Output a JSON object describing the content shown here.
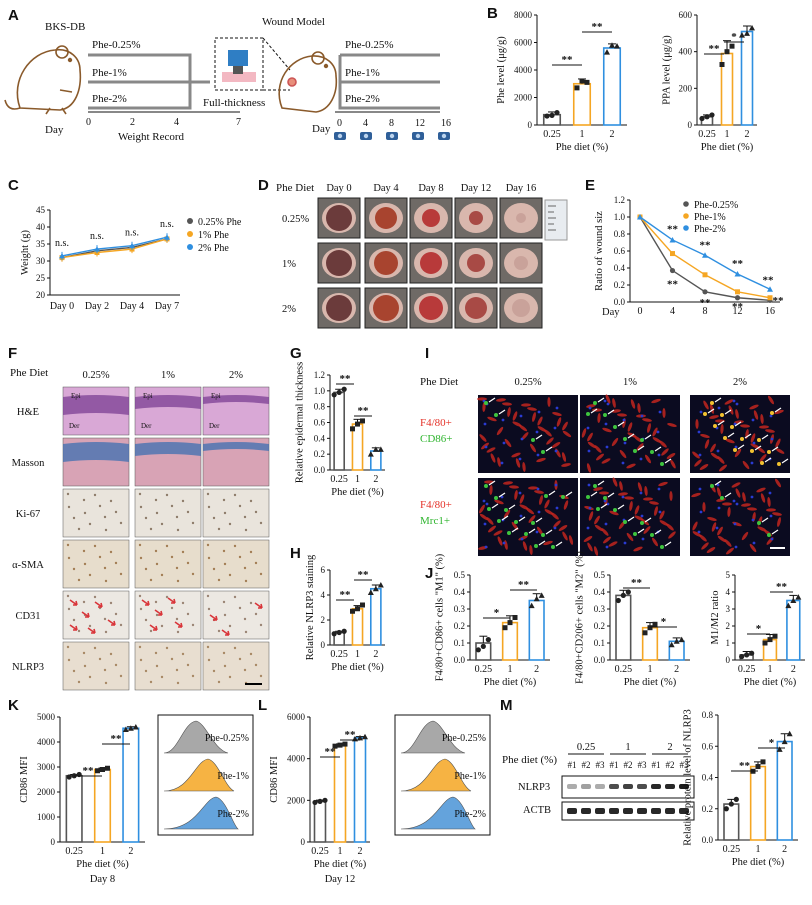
{
  "panel_letters": {
    "A": "A",
    "B": "B",
    "C": "C",
    "D": "D",
    "E": "E",
    "F": "F",
    "G": "G",
    "H": "H",
    "I": "I",
    "J": "J",
    "K": "K",
    "L": "L",
    "M": "M"
  },
  "colors": {
    "c025": "#555555",
    "c1": "#f5a623",
    "c2": "#2f8fe0",
    "red_stain": "#d9353a",
    "green_stain": "#3ec43e"
  },
  "panelA": {
    "mouse1_label": "BKS-DB",
    "groups": [
      "Phe-0.25%",
      "Phe-1%",
      "Phe-2%"
    ],
    "day_label": "Day",
    "weight_days": [
      "0",
      "2",
      "4",
      "7"
    ],
    "weight_record": "Weight Record",
    "full_thickness": "Full-thickness",
    "wound_model": "Wound Model",
    "wound_days": [
      "0",
      "4",
      "8",
      "12",
      "16"
    ]
  },
  "shared": {
    "phe_diet_axis": "Phe diet (%)",
    "diet_ticks": [
      "0.25",
      "1",
      "2"
    ],
    "nss": "n.s.",
    "sig2": "**",
    "sig1": "*"
  },
  "chart_data": [
    {
      "id": "B1",
      "type": "bar",
      "ylabel": "Phe level (μg/g)",
      "xlabel": "Phe diet (%)",
      "categories": [
        "0.25",
        "1",
        "2"
      ],
      "values": [
        750,
        3000,
        5600
      ],
      "errors": [
        200,
        350,
        300
      ],
      "ylim": [
        0,
        8000
      ],
      "yticks": [
        "0",
        "2000",
        "4000",
        "6000",
        "8000"
      ],
      "points": [
        [
          650,
          700,
          900
        ],
        [
          2700,
          3200,
          3100
        ],
        [
          5300,
          5800,
          5750
        ]
      ]
    },
    {
      "id": "B2",
      "type": "bar",
      "ylabel": "PPA level (μg/g)",
      "xlabel": "Phe diet (%)",
      "categories": [
        "0.25",
        "1",
        "2"
      ],
      "values": [
        45,
        390,
        510
      ],
      "errors": [
        10,
        70,
        30
      ],
      "ylim": [
        0,
        600
      ],
      "yticks": [
        "0",
        "200",
        "400",
        "600"
      ],
      "points": [
        [
          35,
          45,
          55
        ],
        [
          330,
          400,
          430
        ],
        [
          490,
          500,
          530
        ]
      ]
    },
    {
      "id": "C",
      "type": "line",
      "ylabel": "Weight (g)",
      "xlabel": "",
      "categories": [
        "Day 0",
        "Day 2",
        "Day 4",
        "Day 7"
      ],
      "ylim": [
        20,
        45
      ],
      "yticks": [
        "20",
        "25",
        "30",
        "35",
        "40",
        "45"
      ],
      "series": [
        {
          "name": "0.25% Phe",
          "values": [
            31,
            33,
            34,
            36.5
          ]
        },
        {
          "name": "1% Phe",
          "values": [
            31,
            32.5,
            33.5,
            36.5
          ]
        },
        {
          "name": "2% Phe",
          "values": [
            31.5,
            33.5,
            34.5,
            37
          ]
        }
      ],
      "annotations": [
        "n.s.",
        "n.s.",
        "n.s.",
        "n.s."
      ]
    },
    {
      "id": "E",
      "type": "line",
      "ylabel": "Ratio of wound siz",
      "xlabel": "Day",
      "x": [
        0,
        4,
        8,
        12,
        16
      ],
      "xticks": [
        "0",
        "4",
        "8",
        "12",
        "16"
      ],
      "ylim": [
        0,
        1.2
      ],
      "yticks": [
        "0.0",
        "0.2",
        "0.4",
        "0.6",
        "0.8",
        "1.0",
        "1.2"
      ],
      "series": [
        {
          "name": "Phe-0.25%",
          "values": [
            1.0,
            0.37,
            0.12,
            0.05,
            0.02
          ]
        },
        {
          "name": "Phe-1%",
          "values": [
            1.0,
            0.57,
            0.32,
            0.12,
            0.05
          ]
        },
        {
          "name": "Phe-2%",
          "values": [
            1.0,
            0.73,
            0.55,
            0.33,
            0.15
          ]
        }
      ]
    },
    {
      "id": "G",
      "type": "bar",
      "ylabel": "Relative epidermal thickness",
      "xlabel": "Phe diet (%)",
      "categories": [
        "0.25",
        "1",
        "2"
      ],
      "values": [
        0.98,
        0.58,
        0.24
      ],
      "errors": [
        0.04,
        0.06,
        0.04
      ],
      "ylim": [
        0,
        1.2
      ],
      "yticks": [
        "0.0",
        "0.2",
        "0.4",
        "0.6",
        "0.8",
        "1.0",
        "1.2"
      ],
      "points": [
        [
          0.95,
          0.98,
          1.02
        ],
        [
          0.52,
          0.58,
          0.62
        ],
        [
          0.2,
          0.26,
          0.26
        ]
      ]
    },
    {
      "id": "H",
      "type": "bar",
      "ylabel": "Relative NLRP3 staining",
      "xlabel": "Phe diet (%)",
      "categories": [
        "0.25",
        "1",
        "2"
      ],
      "values": [
        1.0,
        2.9,
        4.5
      ],
      "errors": [
        0.1,
        0.25,
        0.3
      ],
      "ylim": [
        0,
        6
      ],
      "yticks": [
        "0",
        "2",
        "4",
        "6"
      ],
      "points": [
        [
          0.9,
          1.0,
          1.1
        ],
        [
          2.7,
          2.9,
          3.2
        ],
        [
          4.2,
          4.5,
          4.8
        ]
      ]
    },
    {
      "id": "J1",
      "type": "bar",
      "ylabel": "F4/80+CD86+ cells \"M1\" (%)",
      "xlabel": "Phe diet (%)",
      "categories": [
        "0.25",
        "1",
        "2"
      ],
      "values": [
        0.1,
        0.22,
        0.35
      ],
      "errors": [
        0.04,
        0.04,
        0.04
      ],
      "ylim": [
        0,
        0.5
      ],
      "yticks": [
        "0.0",
        "0.1",
        "0.2",
        "0.3",
        "0.4",
        "0.5"
      ],
      "points": [
        [
          0.06,
          0.08,
          0.12
        ],
        [
          0.19,
          0.22,
          0.25
        ],
        [
          0.32,
          0.36,
          0.38
        ]
      ]
    },
    {
      "id": "J2",
      "type": "bar",
      "ylabel": "F4/80+CD206+ cells \"M2\" (%)",
      "xlabel": "Phe diet (%)",
      "categories": [
        "0.25",
        "1",
        "2"
      ],
      "values": [
        0.38,
        0.19,
        0.11
      ],
      "errors": [
        0.03,
        0.03,
        0.02
      ],
      "ylim": [
        0,
        0.5
      ],
      "yticks": [
        "0.0",
        "0.1",
        "0.2",
        "0.3",
        "0.4",
        "0.5"
      ],
      "points": [
        [
          0.35,
          0.38,
          0.4
        ],
        [
          0.16,
          0.19,
          0.21
        ],
        [
          0.09,
          0.11,
          0.12
        ]
      ]
    },
    {
      "id": "J3",
      "type": "bar",
      "ylabel": "M1/M2 ratio",
      "xlabel": "Phe diet (%)",
      "categories": [
        "0.25",
        "1",
        "2"
      ],
      "values": [
        0.3,
        1.2,
        3.5
      ],
      "errors": [
        0.2,
        0.3,
        0.3
      ],
      "ylim": [
        0,
        5
      ],
      "yticks": [
        "0",
        "1",
        "2",
        "3",
        "4",
        "5"
      ],
      "points": [
        [
          0.2,
          0.3,
          0.4
        ],
        [
          1.0,
          1.2,
          1.4
        ],
        [
          3.2,
          3.5,
          3.7
        ]
      ]
    },
    {
      "id": "K",
      "type": "bar",
      "ylabel": "CD86 MFI",
      "xlabel": "Phe diet (%)",
      "caption": "Day 8",
      "categories": [
        "0.25",
        "1",
        "2"
      ],
      "values": [
        2650,
        2900,
        4550
      ],
      "errors": [
        50,
        60,
        60
      ],
      "ylim": [
        0,
        5000
      ],
      "yticks": [
        "0",
        "1000",
        "2000",
        "3000",
        "4000",
        "5000"
      ],
      "points": [
        [
          2600,
          2650,
          2700
        ],
        [
          2850,
          2900,
          2950
        ],
        [
          4500,
          4550,
          4600
        ]
      ]
    },
    {
      "id": "L",
      "type": "bar",
      "ylabel": "CD86 MFI",
      "xlabel": "Phe diet (%)",
      "caption": "Day 12",
      "categories": [
        "0.25",
        "1",
        "2"
      ],
      "values": [
        1950,
        4650,
        5000
      ],
      "errors": [
        60,
        60,
        60
      ],
      "ylim": [
        0,
        6000
      ],
      "yticks": [
        "0",
        "2000",
        "4000",
        "6000"
      ],
      "points": [
        [
          1900,
          1950,
          2000
        ],
        [
          4600,
          4650,
          4700
        ],
        [
          4950,
          5000,
          5050
        ]
      ]
    },
    {
      "id": "M",
      "type": "bar",
      "ylabel": "Relative protein level of NLRP3",
      "xlabel": "Phe diet (%)",
      "categories": [
        "0.25",
        "1",
        "2"
      ],
      "values": [
        0.23,
        0.47,
        0.63
      ],
      "errors": [
        0.03,
        0.03,
        0.05
      ],
      "ylim": [
        0,
        0.8
      ],
      "yticks": [
        "0.0",
        "0.2",
        "0.4",
        "0.6",
        "0.8"
      ],
      "points": [
        [
          0.2,
          0.23,
          0.26
        ],
        [
          0.44,
          0.47,
          0.5
        ],
        [
          0.58,
          0.63,
          0.68
        ]
      ]
    }
  ],
  "panelD": {
    "title": "Phe Diet",
    "days": [
      "Day 0",
      "Day 4",
      "Day 8",
      "Day 12",
      "Day 16"
    ],
    "rows": [
      "0.25%",
      "1%",
      "2%"
    ]
  },
  "panelF": {
    "title": "Phe Diet",
    "cols": [
      "0.25%",
      "1%",
      "2%"
    ],
    "rows": [
      "H&E",
      "Masson",
      "Ki-67",
      "α-SMA",
      "CD31",
      "NLRP3"
    ],
    "he_labels": [
      "Epi",
      "Der"
    ]
  },
  "panelI": {
    "title": "Phe Diet",
    "cols": [
      "0.25%",
      "1%",
      "2%"
    ],
    "row1": [
      "F4/80+",
      "CD86+"
    ],
    "row2": [
      "F4/80+",
      "Mrc1+"
    ]
  },
  "panelKL": {
    "legend": [
      "Phe-0.25%",
      "Phe-1%",
      "Phe-2%"
    ]
  },
  "panelM": {
    "ylabel_left": "Phe diet (%)",
    "groups": [
      "0.25",
      "1",
      "2"
    ],
    "lanes": [
      "#1",
      "#2",
      "#3",
      "#1",
      "#2",
      "#3",
      "#1",
      "#2",
      "#3"
    ],
    "blots": [
      "NLRP3",
      "ACTB"
    ]
  }
}
